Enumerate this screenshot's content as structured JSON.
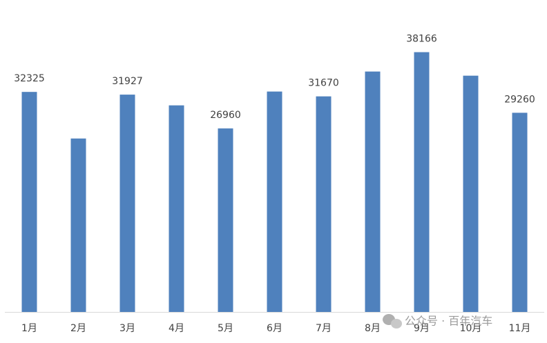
{
  "chart_data": {
    "type": "bar",
    "categories": [
      "1月",
      "2月",
      "3月",
      "4月",
      "5月",
      "6月",
      "7月",
      "8月",
      "9月",
      "10月",
      "11月"
    ],
    "values": [
      32325,
      25480,
      31927,
      30350,
      26960,
      32380,
      31670,
      35320,
      38166,
      34710,
      29260
    ],
    "value_labels": [
      "32325",
      null,
      "31927",
      null,
      "26960",
      null,
      "31670",
      null,
      "38166",
      null,
      "29260"
    ],
    "color": "#4f81bd",
    "ylim": [
      0,
      43800
    ],
    "watermark": "公众号 · 百年汽车"
  }
}
